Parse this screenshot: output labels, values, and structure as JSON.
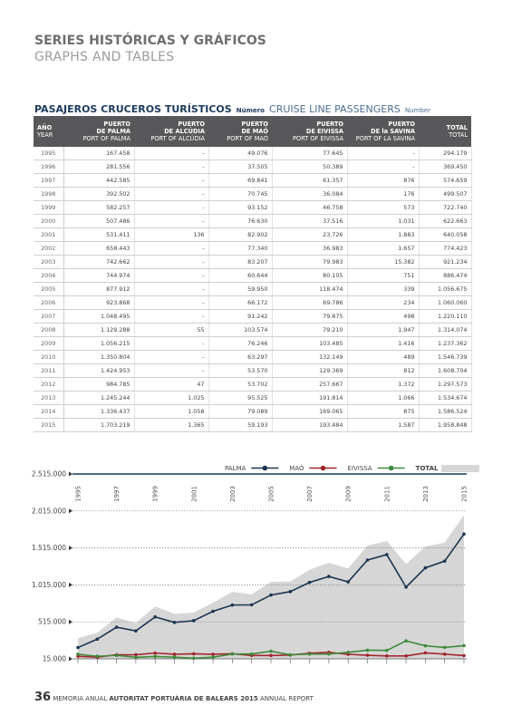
{
  "header": {
    "title": "SERIES HISTÓRICAS Y GRÁFICOS",
    "subtitle": "GRAPHS AND TABLES"
  },
  "table_title": {
    "es": "PASAJEROS CRUCEROS TURÍSTICOS",
    "es_unit": "Número",
    "en": "CRUISE LINE PASSENGERS",
    "en_unit": "Number"
  },
  "table": {
    "columns": [
      {
        "es": [
          "AÑO"
        ],
        "en": "YEAR"
      },
      {
        "es": [
          "PUERTO",
          "DE PALMA"
        ],
        "en": "PORT OF PALMA"
      },
      {
        "es": [
          "PUERTO",
          "DE ALCÚDIA"
        ],
        "en": "PORT OF ALCÚDIA"
      },
      {
        "es": [
          "PUERTO",
          "DE MAÓ"
        ],
        "en": "PORT OF MAÓ"
      },
      {
        "es": [
          "PUERTO",
          "DE EIVISSA"
        ],
        "en": "PORT OF EIVISSA"
      },
      {
        "es": [
          "PUERTO",
          "DE la SAVINA"
        ],
        "en": "PORT OF LA SAVINA"
      },
      {
        "es": [
          "TOTAL"
        ],
        "en": "TOTAL"
      }
    ],
    "rows": [
      [
        "1995",
        "167.458",
        "-",
        "49.076",
        "77.645",
        "-",
        "294.179"
      ],
      [
        "1996",
        "281.556",
        "-",
        "37.505",
        "50.389",
        "-",
        "369.450"
      ],
      [
        "1997",
        "442.585",
        "-",
        "69.841",
        "61.357",
        "876",
        "574.659"
      ],
      [
        "1998",
        "392.502",
        "-",
        "70.745",
        "36.084",
        "176",
        "499.507"
      ],
      [
        "1999",
        "582.257",
        "-",
        "93.152",
        "46.758",
        "573",
        "722.740"
      ],
      [
        "2000",
        "507.486",
        "-",
        "76.630",
        "37.516",
        "1.031",
        "622.663"
      ],
      [
        "2001",
        "531.411",
        "136",
        "82.902",
        "23.726",
        "1.883",
        "640.058"
      ],
      [
        "2002",
        "658.443",
        "-",
        "77.340",
        "36.983",
        "1.657",
        "774.423"
      ],
      [
        "2003",
        "742.662",
        "-",
        "83.207",
        "79.983",
        "15.382",
        "921.234"
      ],
      [
        "2004",
        "744.974",
        "-",
        "60.644",
        "80.105",
        "751",
        "886.474"
      ],
      [
        "2005",
        "877.912",
        "-",
        "59.950",
        "118.474",
        "339",
        "1.056.675"
      ],
      [
        "2006",
        "923.868",
        "-",
        "66.172",
        "69.786",
        "234",
        "1.060.060"
      ],
      [
        "2007",
        "1.048.495",
        "-",
        "91.242",
        "79.875",
        "498",
        "1.220.110"
      ],
      [
        "2008",
        "1.129.288",
        "55",
        "103.574",
        "79.210",
        "1.947",
        "1.314.074"
      ],
      [
        "2009",
        "1.056.215",
        "-",
        "76.246",
        "103.485",
        "1.416",
        "1.237.362"
      ],
      [
        "2010",
        "1.350.804",
        "-",
        "63.297",
        "132.149",
        "489",
        "1.546.739"
      ],
      [
        "2011",
        "1.424.953",
        "-",
        "53.570",
        "129.369",
        "812",
        "1.608.704"
      ],
      [
        "2012",
        "984.785",
        "47",
        "53.702",
        "257.667",
        "1.372",
        "1.297.573"
      ],
      [
        "2013",
        "1.245.244",
        "1.025",
        "95.525",
        "191.814",
        "1.066",
        "1.534.674"
      ],
      [
        "2014",
        "1.336.437",
        "1.058",
        "79.089",
        "169.065",
        "875",
        "1.586.524"
      ],
      [
        "2015",
        "1.703.219",
        "1.365",
        "59.193",
        "193.484",
        "1.587",
        "1.958.848"
      ]
    ]
  },
  "chart_data": {
    "type": "line",
    "x": [
      1995,
      1996,
      1997,
      1998,
      1999,
      2000,
      2001,
      2002,
      2003,
      2004,
      2005,
      2006,
      2007,
      2008,
      2009,
      2010,
      2011,
      2012,
      2013,
      2014,
      2015
    ],
    "xlim": [
      1995,
      2015
    ],
    "xticks": [
      1995,
      1997,
      1999,
      2001,
      2003,
      2005,
      2007,
      2009,
      2011,
      2013,
      2015
    ],
    "ylim": [
      15000,
      2515000
    ],
    "yticks": [
      {
        "value": 15000,
        "label": "15.000"
      },
      {
        "value": 515000,
        "label": "515.000"
      },
      {
        "value": 1015000,
        "label": "1.015.000"
      },
      {
        "value": 1515000,
        "label": "1.515.000"
      },
      {
        "value": 2015000,
        "label": "2.015.000"
      },
      {
        "value": 2515000,
        "label": "2.515.000"
      }
    ],
    "grid": true,
    "series": [
      {
        "name": "PALMA",
        "color": "#1c3550",
        "values": [
          167458,
          281556,
          442585,
          392502,
          582257,
          507486,
          531411,
          658443,
          742662,
          744974,
          877912,
          923868,
          1048495,
          1129288,
          1056215,
          1350804,
          1424953,
          984785,
          1245244,
          1336437,
          1703219
        ]
      },
      {
        "name": "MAÓ",
        "color": "#a3262c",
        "values": [
          49076,
          37505,
          69841,
          70745,
          93152,
          76630,
          82902,
          77340,
          83207,
          60644,
          59950,
          66172,
          91242,
          103574,
          76246,
          63297,
          53570,
          53702,
          95525,
          79089,
          59193
        ]
      },
      {
        "name": "EIVISSA",
        "color": "#3f8a3c",
        "values": [
          77645,
          50389,
          61357,
          36084,
          46758,
          37516,
          23726,
          36983,
          79983,
          80105,
          118474,
          69786,
          79875,
          79210,
          103485,
          132149,
          129369,
          257667,
          191814,
          169065,
          193484
        ]
      },
      {
        "name": "TOTAL",
        "color": "#d6d6d6",
        "style": "area",
        "values": [
          294179,
          369450,
          574659,
          499507,
          722740,
          622663,
          640058,
          774423,
          921234,
          886474,
          1056675,
          1060060,
          1220110,
          1314074,
          1237362,
          1546739,
          1608704,
          1297573,
          1534674,
          1586524,
          1958848
        ]
      }
    ]
  },
  "footer": {
    "page": "36",
    "left": "MEMORIA ANUAL",
    "org": "AUTORITAT PORTUÀRIA DE BALEARS 2015",
    "right": "ANNUAL REPORT"
  }
}
